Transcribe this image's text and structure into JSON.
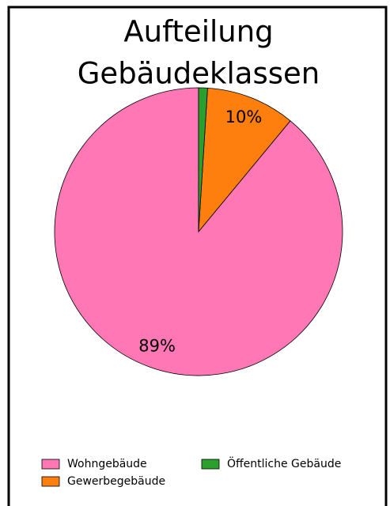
{
  "chart_data": {
    "type": "pie",
    "title": [
      "Aufteilung",
      "Gebäudeklassen"
    ],
    "categories": [
      "Wohngebäude",
      "Gewerbegebäude",
      "Öffentliche Gebäude"
    ],
    "values": [
      89,
      10,
      1
    ],
    "value_labels": [
      "89%",
      "10%",
      null
    ],
    "colors": [
      "#ff77b4",
      "#ff7f0e",
      "#2ca02c"
    ],
    "legend": "bottom"
  }
}
